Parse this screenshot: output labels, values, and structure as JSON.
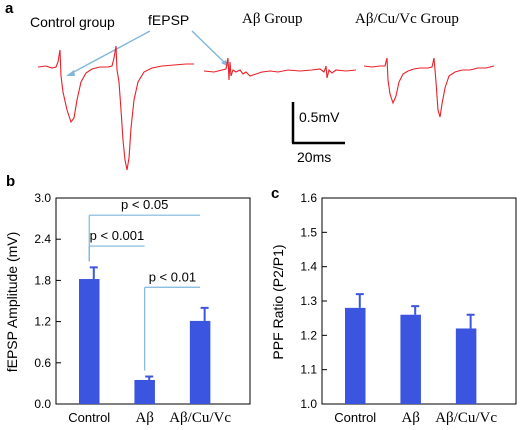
{
  "colors": {
    "bar": "#3b55e0",
    "trace": "#e8202a",
    "callout": "#7fb6dc",
    "axis": "#000000"
  },
  "panel_a": {
    "label": "a",
    "titles": {
      "control": "Control group",
      "fepsp": "fEPSP",
      "abeta": "Aβ Group",
      "abeta_cu_vc": "Aβ/Cu/Vc Group"
    },
    "scalebar": {
      "voltage": "0.5mV",
      "time": "20ms"
    }
  },
  "chart_data": [
    {
      "id": "b",
      "panel_label": "b",
      "type": "bar",
      "categories": [
        "Control",
        "Aβ",
        "Aβ/Cu/Vc"
      ],
      "values": [
        1.82,
        0.35,
        1.21
      ],
      "errors": [
        0.17,
        0.05,
        0.19
      ],
      "ylabel": "fEPSP Amplitude (mV)",
      "ylim": [
        0,
        3.0
      ],
      "yticks": [
        "0.0",
        "0.6",
        "1.2",
        "1.8",
        "2.4",
        "3.0"
      ],
      "grid": false,
      "annotations": [
        {
          "text": "p < 0.05",
          "from": 0,
          "to": 2,
          "y": 2.75
        },
        {
          "text": "p < 0.001",
          "from": 0,
          "to": 1,
          "y": 2.3
        },
        {
          "text": "p < 0.01",
          "from": 1,
          "to": 2,
          "y": 1.7
        }
      ]
    },
    {
      "id": "c",
      "panel_label": "c",
      "type": "bar",
      "categories": [
        "Control",
        "Aβ",
        "Aβ/Cu/Vc"
      ],
      "values": [
        1.28,
        1.26,
        1.22
      ],
      "errors": [
        0.04,
        0.025,
        0.04
      ],
      "ylabel": "PPF Ratio (P2/P1)",
      "ylim": [
        1.0,
        1.6
      ],
      "yticks": [
        "1.0",
        "1.1",
        "1.2",
        "1.3",
        "1.4",
        "1.5",
        "1.6"
      ],
      "grid": false
    }
  ]
}
